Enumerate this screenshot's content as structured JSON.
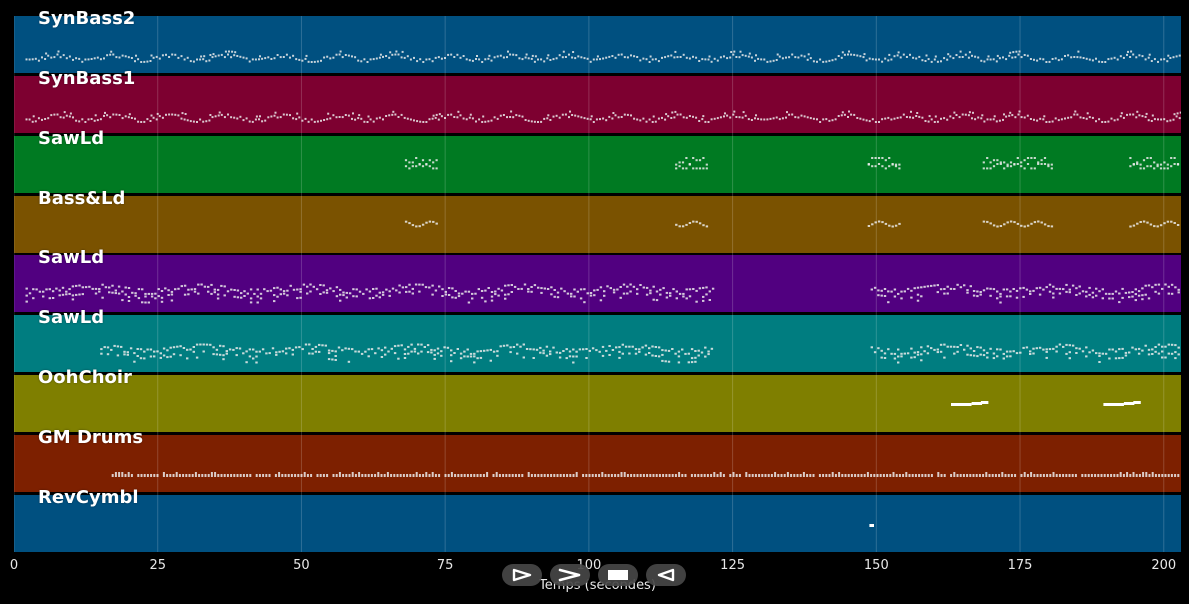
{
  "axis": {
    "label": "Temps (secondes)",
    "ticks": [
      "0",
      "25",
      "50",
      "75",
      "100",
      "125",
      "150",
      "175",
      "200"
    ],
    "range": [
      0,
      203
    ]
  },
  "tracks": [
    {
      "name": "SynBass2",
      "color": "#005080",
      "pattern": "bass",
      "segments": [
        [
          2,
          203
        ]
      ]
    },
    {
      "name": "SynBass1",
      "color": "#7d0030",
      "pattern": "bass",
      "segments": [
        [
          2,
          203
        ]
      ]
    },
    {
      "name": "SawLd",
      "color": "#007a22",
      "pattern": "cluster",
      "segments": [
        [
          68,
          74
        ],
        [
          115,
          121
        ],
        [
          148.5,
          154.5
        ],
        [
          168.5,
          181
        ],
        [
          194,
          203
        ]
      ]
    },
    {
      "name": "Bass&Ld",
      "color": "#7a5200",
      "pattern": "wave",
      "segments": [
        [
          68,
          74
        ],
        [
          115,
          121
        ],
        [
          148.5,
          154.5
        ],
        [
          168.5,
          181
        ],
        [
          194,
          203
        ]
      ]
    },
    {
      "name": "SawLd",
      "color": "#510080",
      "pattern": "dense",
      "segments": [
        [
          2,
          122
        ],
        [
          149,
          203
        ]
      ]
    },
    {
      "name": "SawLd",
      "color": "#007d80",
      "pattern": "dense",
      "segments": [
        [
          15,
          122
        ],
        [
          149,
          203
        ]
      ]
    },
    {
      "name": "OohChoir",
      "color": "#7f7f00",
      "pattern": "choir",
      "segments": [
        [
          163,
          169.5
        ],
        [
          189.5,
          196
        ]
      ]
    },
    {
      "name": "GM Drums",
      "color": "#7d2000",
      "pattern": "drums",
      "segments": [
        [
          17,
          203
        ]
      ]
    },
    {
      "name": "RevCymbl",
      "color": "#005080",
      "pattern": "single",
      "segments": [
        [
          148.8,
          149.6
        ]
      ]
    }
  ],
  "transport": {
    "buttons": [
      {
        "name": "play-button",
        "icon": "play-icon"
      },
      {
        "name": "forward-button",
        "icon": "forward-icon"
      },
      {
        "name": "stop-button",
        "icon": "stop-icon"
      },
      {
        "name": "back-button",
        "icon": "back-icon"
      }
    ]
  }
}
